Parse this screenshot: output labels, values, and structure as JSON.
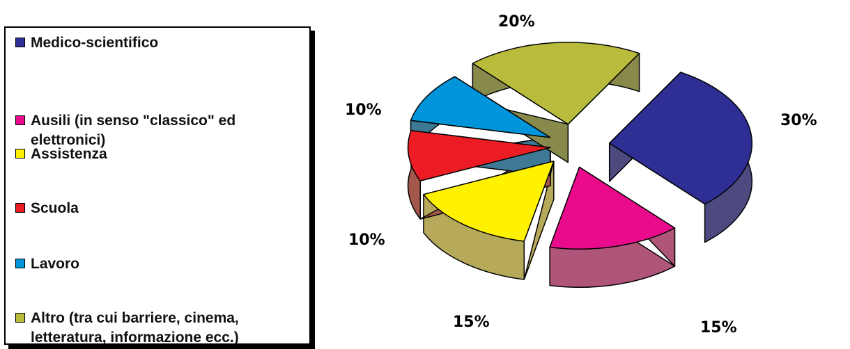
{
  "chart_data": {
    "type": "pie",
    "style": "3d-exploded",
    "legend_position": "left",
    "slices": [
      {
        "label": "Medico-scientifico",
        "value": 30,
        "value_label": "30%",
        "color": "#2e2e94",
        "side_color": "#4d4a80"
      },
      {
        "label": "Ausili (in senso \"classico\" ed elettronici)",
        "value": 15,
        "value_label": "15%",
        "color": "#ea0b8c",
        "side_color": "#b0557a"
      },
      {
        "label": "Assistenza",
        "value": 15,
        "value_label": "15%",
        "color": "#fff200",
        "side_color": "#b6a95a"
      },
      {
        "label": "Scuola",
        "value": 10,
        "value_label": "10%",
        "color": "#ec1c24",
        "side_color": "#a4574b"
      },
      {
        "label": "Lavoro",
        "value": 10,
        "value_label": "10%",
        "color": "#0095da",
        "side_color": "#3d7994"
      },
      {
        "label": "Altro (tra cui barriere, cinema, letteratura, informazione ecc.)",
        "value": 20,
        "value_label": "20%",
        "color": "#b9bb3d",
        "side_color": "#878a4a"
      }
    ]
  }
}
